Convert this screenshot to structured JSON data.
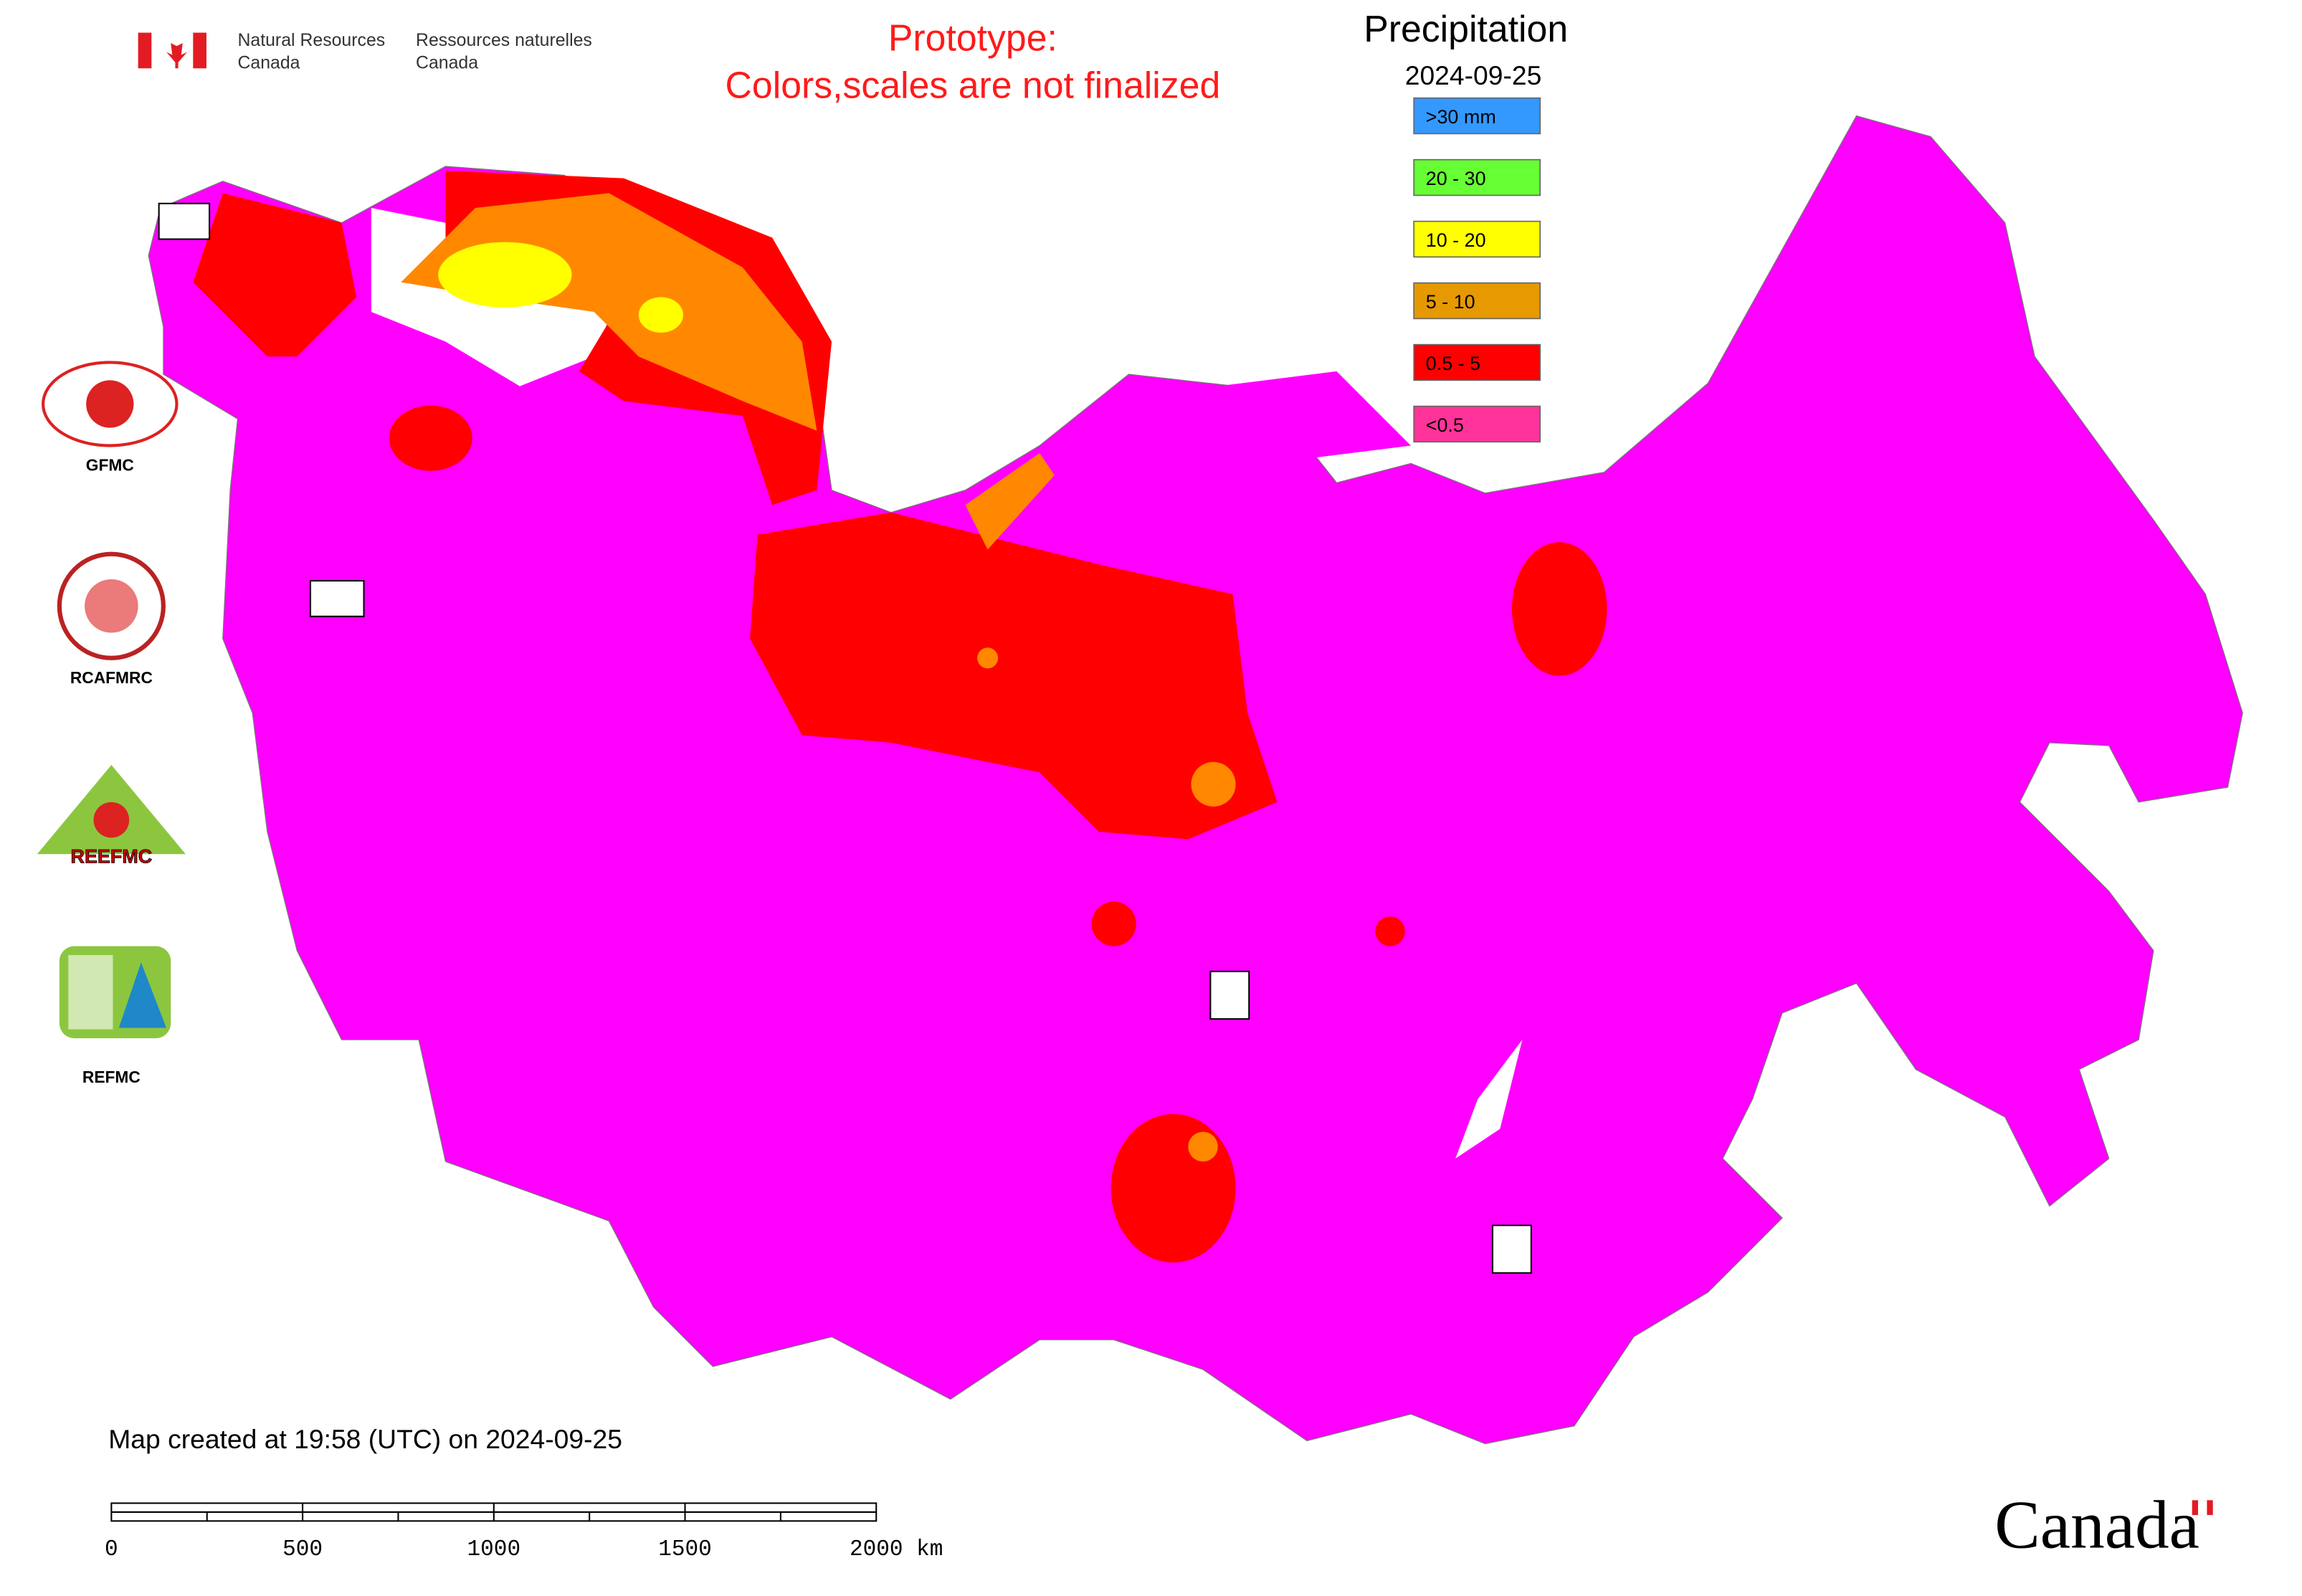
{
  "header": {
    "department_en": [
      "Natural Resources",
      "Canada"
    ],
    "department_fr": [
      "Ressources naturelles",
      "Canada"
    ]
  },
  "notice": [
    "Prototype:",
    "Colors,scales are not finalized"
  ],
  "map": {
    "title": "Precipitation",
    "date": "2024-09-25",
    "legend": [
      {
        "label": ">30 mm",
        "color": "#3399ff"
      },
      {
        "label": "20 - 30",
        "color": "#66ff33"
      },
      {
        "label": "10 - 20",
        "color": "#ffff00"
      },
      {
        "label": "5 - 10",
        "color": "#e69900"
      },
      {
        "label": "0.5 - 5",
        "color": "#ff0000"
      },
      {
        "label": "<0.5",
        "color": "#ff3399"
      }
    ],
    "created": "Map created at 19:58 (UTC) on 2024-09-25",
    "scale_bar": [
      "0",
      "500",
      "1000",
      "1500",
      "2000 km"
    ]
  },
  "logos": [
    "GFMC",
    "RCAFMRC",
    "REEFMC",
    "REFMC"
  ],
  "footer": {
    "wordmark": "Canada"
  }
}
